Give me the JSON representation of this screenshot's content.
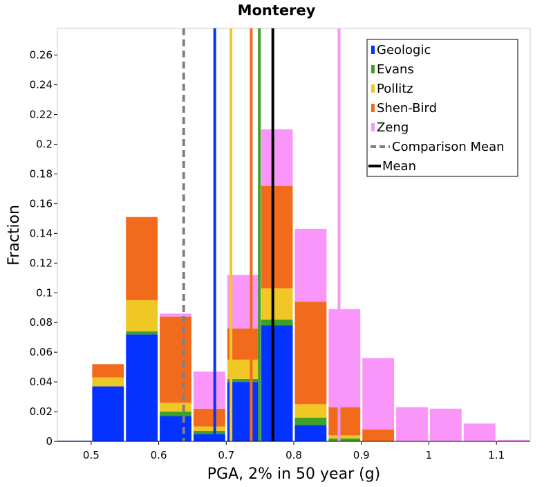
{
  "chart_data": {
    "type": "bar",
    "stacked": true,
    "title": "Monterey",
    "xlabel": "PGA, 2% in 50 year (g)",
    "ylabel": "Fraction",
    "xlim": [
      0.45,
      1.15
    ],
    "ylim": [
      0,
      0.278
    ],
    "grid": false,
    "legend_position": "top-right",
    "bin_width": 0.05,
    "x_ticks": [
      {
        "value": 0.5,
        "label": "0.5"
      },
      {
        "value": 0.6,
        "label": "0.6"
      },
      {
        "value": 0.7,
        "label": "0.7"
      },
      {
        "value": 0.8,
        "label": "0.8"
      },
      {
        "value": 0.9,
        "label": "0.9"
      },
      {
        "value": 1.0,
        "label": "1"
      },
      {
        "value": 1.1,
        "label": "1.1"
      }
    ],
    "y_ticks": [
      {
        "value": 0,
        "label": "0"
      },
      {
        "value": 0.02,
        "label": "0.02"
      },
      {
        "value": 0.04,
        "label": "0.04"
      },
      {
        "value": 0.06,
        "label": "0.06"
      },
      {
        "value": 0.08,
        "label": "0.08"
      },
      {
        "value": 0.1,
        "label": "0.1"
      },
      {
        "value": 0.12,
        "label": "0.12"
      },
      {
        "value": 0.14,
        "label": "0.14"
      },
      {
        "value": 0.16,
        "label": "0.16"
      },
      {
        "value": 0.18,
        "label": "0.18"
      },
      {
        "value": 0.2,
        "label": "0.2"
      },
      {
        "value": 0.22,
        "label": "0.22"
      },
      {
        "value": 0.24,
        "label": "0.24"
      },
      {
        "value": 0.26,
        "label": "0.26"
      }
    ],
    "bins": [
      0.475,
      0.525,
      0.575,
      0.625,
      0.675,
      0.725,
      0.775,
      0.825,
      0.875,
      0.925,
      0.975,
      1.025,
      1.075,
      1.125
    ],
    "series": [
      {
        "name": "Geologic",
        "color": "#0433ff",
        "values": [
          0.0,
          0.037,
          0.072,
          0.017,
          0.005,
          0.04,
          0.078,
          0.011,
          0.0,
          0.0,
          0.0,
          0.0,
          0.0,
          0.0
        ]
      },
      {
        "name": "Evans",
        "color": "#3fa028",
        "values": [
          0.0,
          0.0,
          0.002,
          0.003,
          0.002,
          0.002,
          0.004,
          0.005,
          0.002,
          0.0,
          0.0,
          0.0,
          0.0,
          0.0
        ]
      },
      {
        "name": "Pollitz",
        "color": "#f0c826",
        "values": [
          0.0,
          0.006,
          0.021,
          0.006,
          0.003,
          0.013,
          0.021,
          0.009,
          0.002,
          0.0,
          0.0,
          0.0,
          0.0,
          0.0
        ]
      },
      {
        "name": "Shen-Bird",
        "color": "#f26b1d",
        "values": [
          0.0,
          0.009,
          0.056,
          0.058,
          0.012,
          0.021,
          0.069,
          0.069,
          0.019,
          0.008,
          0.0,
          0.0,
          0.0,
          0.0
        ]
      },
      {
        "name": "Zeng",
        "color": "#fa96fa",
        "values": [
          0.0,
          0.0,
          0.0,
          0.002,
          0.025,
          0.036,
          0.038,
          0.049,
          0.066,
          0.048,
          0.023,
          0.022,
          0.012,
          0.001
        ]
      }
    ],
    "mean_lines": [
      {
        "name": "Geologic",
        "color": "#0433ff",
        "x": 0.683
      },
      {
        "name": "Evans",
        "color": "#3fa028",
        "x": 0.749
      },
      {
        "name": "Pollitz",
        "color": "#f0c826",
        "x": 0.707
      },
      {
        "name": "Shen-Bird",
        "color": "#f26b1d",
        "x": 0.737
      },
      {
        "name": "Zeng",
        "color": "#fa96fa",
        "x": 0.867
      },
      {
        "name": "Comparison Mean",
        "color": "#808080",
        "x": 0.637,
        "dashed": true
      },
      {
        "name": "Mean",
        "color": "#000000",
        "x": 0.769
      }
    ],
    "legend": [
      {
        "label": "Geologic",
        "color": "#0433ff",
        "kind": "box"
      },
      {
        "label": "Evans",
        "color": "#3fa028",
        "kind": "box"
      },
      {
        "label": "Pollitz",
        "color": "#f0c826",
        "kind": "box"
      },
      {
        "label": "Shen-Bird",
        "color": "#f26b1d",
        "kind": "box"
      },
      {
        "label": "Zeng",
        "color": "#fa96fa",
        "kind": "box"
      },
      {
        "label": "Comparison Mean",
        "color": "#808080",
        "kind": "dashed-line"
      },
      {
        "label": "Mean",
        "color": "#000000",
        "kind": "line"
      }
    ]
  }
}
